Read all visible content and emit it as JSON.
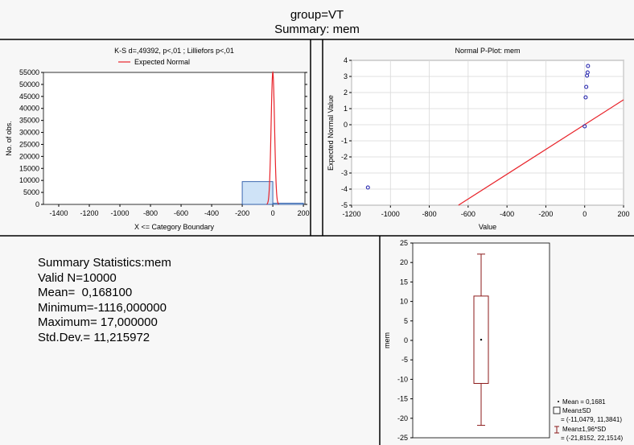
{
  "header": {
    "line1": "group=VT",
    "line2": "Summary: mem"
  },
  "stats": {
    "title": "Summary Statistics:mem",
    "valid_n": "Valid N=10000",
    "mean": "Mean=  0,168100",
    "minimum": "Minimum=-1116,000000",
    "maximum": "Maximum= 17,000000",
    "std_dev": "Std.Dev.= 11,215972"
  },
  "colors": {
    "bar_fill": "#cfe3f7",
    "bar_stroke": "#2a5aa8",
    "curve": "#e8232a",
    "point": "#1a1aaa",
    "box": "#8b1a1a"
  },
  "chart_data": [
    {
      "type": "bar",
      "title": "K-S d=,49392, p<,01 ; Lilliefors p<,01",
      "legend": [
        "Expected Normal"
      ],
      "xlabel": "X <= Category Boundary",
      "ylabel": "No. of obs.",
      "xlim": [
        -1500,
        210
      ],
      "ylim": [
        0,
        55000
      ],
      "xticks": [
        "-1400",
        "-1200",
        "-1000",
        "-800",
        "-600",
        "-400",
        "-200",
        "0",
        "200"
      ],
      "yticks": [
        "0",
        "5000",
        "10000",
        "15000",
        "20000",
        "25000",
        "30000",
        "35000",
        "40000",
        "45000",
        "50000",
        "55000"
      ],
      "bins": [
        {
          "from": -200,
          "to": 0,
          "count": 9500
        },
        {
          "from": 0,
          "to": 200,
          "count": 500
        }
      ]
    },
    {
      "type": "scatter",
      "title": "Normal P-Plot: mem",
      "xlabel": "Value",
      "ylabel": "Expected Normal Value",
      "xlim": [
        -1200,
        200
      ],
      "ylim": [
        -5,
        4
      ],
      "xticks": [
        "-1200",
        "-1000",
        "-800",
        "-600",
        "-400",
        "-200",
        "0",
        "200"
      ],
      "yticks": [
        "-5",
        "-4",
        "-3",
        "-2",
        "-1",
        "0",
        "1",
        "2",
        "3",
        "4"
      ],
      "points": [
        {
          "x": -1116,
          "y": -3.9
        },
        {
          "x": 0,
          "y": -0.1
        },
        {
          "x": 5,
          "y": 1.7
        },
        {
          "x": 8,
          "y": 2.35
        },
        {
          "x": 12,
          "y": 3.05
        },
        {
          "x": 15,
          "y": 3.25
        },
        {
          "x": 17,
          "y": 3.65
        }
      ],
      "reference_line": [
        {
          "x": -650,
          "y": -5
        },
        {
          "x": 200,
          "y": 1.55
        }
      ]
    },
    {
      "type": "box",
      "ylabel": "mem",
      "ylim": [
        -25,
        25
      ],
      "yticks": [
        "25",
        "20",
        "15",
        "10",
        "5",
        "0",
        "-5",
        "-10",
        "-15",
        "-20",
        "-25"
      ],
      "mean": 0.1681,
      "sd_box": [
        -11.0479,
        11.3841
      ],
      "whiskers": [
        -21.8152,
        22.1514
      ],
      "legend": [
        "Mean = 0,1681",
        "Mean±SD",
        "= (-11,0479, 11,3841)",
        "Mean±1,96*SD",
        "= (-21,8152, 22,1514)"
      ]
    }
  ]
}
